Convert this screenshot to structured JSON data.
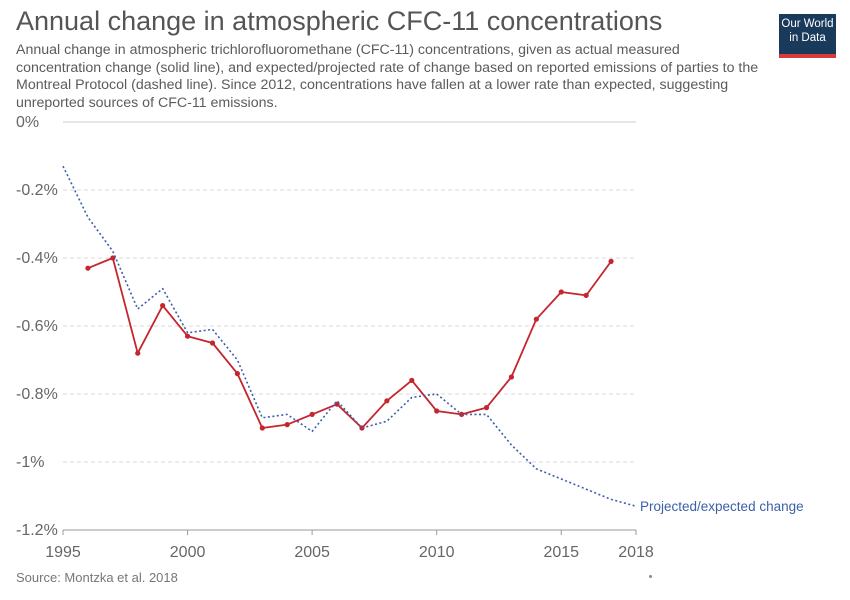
{
  "header": {
    "title": "Annual change in atmospheric CFC-11 concentrations",
    "subtitle": "Annual change in atmospheric trichlorofluoromethane (CFC-11) concentrations, given as actual measured concentration change (solid line), and expected/projected rate of change based on reported emissions of parties to the Montreal Protocol (dashed line). Since 2012, concentrations have fallen at a lower rate than expected, suggesting unreported sources of CFC-11 emissions."
  },
  "logo": {
    "line1": "Our World",
    "line2": "in Data"
  },
  "footer": {
    "source": "Source: Montzka et al. 2018"
  },
  "colors": {
    "measured": "#c4262e",
    "projected": "#3b5fa8",
    "grid": "#d9d9d9",
    "axis": "#999999"
  },
  "chart_data": {
    "type": "line",
    "title": "Annual change in atmospheric CFC-11 concentrations",
    "xlim": [
      1995,
      2018
    ],
    "ylim": [
      -1.2,
      0
    ],
    "x_ticks": [
      1995,
      2000,
      2005,
      2010,
      2015,
      2018
    ],
    "y_ticks": [
      0,
      -0.2,
      -0.4,
      -0.6,
      -0.8,
      -1,
      -1.2
    ],
    "y_tick_labels": [
      "0%",
      "-0.2%",
      "-0.4%",
      "-0.6%",
      "-0.8%",
      "-1%",
      "-1.2%"
    ],
    "grid": "horizontal dashed",
    "series": [
      {
        "style": "solid",
        "color": "#c4262e",
        "markers": true,
        "x": [
          1996,
          1997,
          1998,
          1999,
          2000,
          2001,
          2002,
          2003,
          2004,
          2005,
          2006,
          2007,
          2008,
          2009,
          2010,
          2011,
          2012,
          2013,
          2014,
          2015,
          2016,
          2017
        ],
        "y": [
          -0.43,
          -0.4,
          -0.68,
          -0.54,
          -0.63,
          -0.65,
          -0.74,
          -0.9,
          -0.89,
          -0.86,
          -0.83,
          -0.9,
          -0.82,
          -0.76,
          -0.85,
          -0.86,
          -0.84,
          -0.75,
          -0.58,
          -0.5,
          -0.51,
          -0.41
        ]
      },
      {
        "name": "Projected/expected change",
        "style": "dotted",
        "color": "#3b5fa8",
        "markers": false,
        "x": [
          1995,
          1996,
          1997,
          1998,
          1999,
          2000,
          2001,
          2002,
          2003,
          2004,
          2005,
          2006,
          2007,
          2008,
          2009,
          2010,
          2011,
          2012,
          2013,
          2014,
          2015,
          2016,
          2017,
          2018
        ],
        "y": [
          -0.13,
          -0.28,
          -0.38,
          -0.55,
          -0.49,
          -0.62,
          -0.61,
          -0.7,
          -0.87,
          -0.86,
          -0.91,
          -0.82,
          -0.9,
          -0.88,
          -0.81,
          -0.8,
          -0.86,
          -0.86,
          -0.95,
          -1.02,
          -1.05,
          -1.08,
          -1.11,
          -1.13
        ]
      }
    ]
  }
}
